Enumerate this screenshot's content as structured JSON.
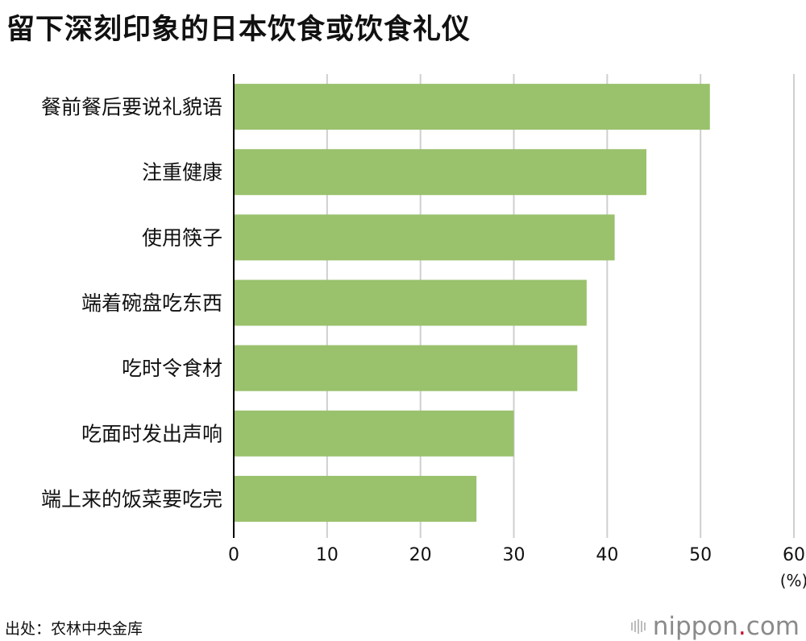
{
  "title": "留下深刻印象的日本饮食或饮食礼仪",
  "source": "出处：农林中央金库",
  "logo": {
    "prefix": "nippon",
    "dot": ".",
    "suffix": "com"
  },
  "colors": {
    "bar": "#9ac16c",
    "grid": "#cfcfcf",
    "axis": "#000000",
    "text": "#111111"
  },
  "chart_data": {
    "type": "bar",
    "orientation": "horizontal",
    "categories": [
      "餐前餐后要说礼貌语",
      "注重健康",
      "使用筷子",
      "端着碗盘吃东西",
      "吃时令食材",
      "吃面时发出声响",
      "端上来的饭菜要吃完"
    ],
    "values": [
      51,
      44.2,
      40.8,
      37.8,
      36.8,
      30,
      26
    ],
    "title": "留下深刻印象的日本饮食或饮食礼仪",
    "xlim": [
      0,
      60
    ],
    "xticks": [
      "0",
      "10",
      "20",
      "30",
      "40",
      "50",
      "60"
    ],
    "unit": "(%)",
    "grid": true
  }
}
